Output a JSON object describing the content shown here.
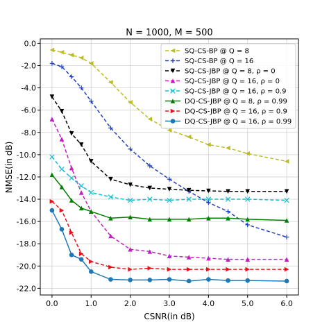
{
  "chart_data": {
    "type": "line",
    "title": "N = 1000, M = 500",
    "xlabel": "CSNR(in dB)",
    "ylabel": "NMSE(in dB)",
    "xlim": [
      -0.3,
      6.3
    ],
    "ylim": [
      -22.6,
      0.4
    ],
    "xticks": [
      0,
      1,
      2,
      3,
      4,
      5,
      6
    ],
    "xtick_labels": [
      "0.0",
      "1.0",
      "2.0",
      "3.0",
      "4.0",
      "5.0",
      "6.0"
    ],
    "yticks": [
      0,
      -2,
      -4,
      -6,
      -8,
      -10,
      -12,
      -14,
      -16,
      -18,
      -20,
      -22
    ],
    "ytick_labels": [
      "0.0",
      "-2.0",
      "-4.0",
      "-6.0",
      "-8.0",
      "-10.0",
      "-12.0",
      "-14.0",
      "-16.0",
      "-18.0",
      "-20.0",
      "-22.0"
    ],
    "grid": true,
    "legend_position": "top-right",
    "series": [
      {
        "name": "SQ-CS-BP @ Q = 8",
        "color": "#bcbd22",
        "linestyle": "dashed",
        "marker": "triangle-left",
        "x": [
          0,
          0.25,
          0.5,
          0.75,
          1,
          1.5,
          2,
          2.5,
          3,
          3.5,
          4,
          4.5,
          5,
          6
        ],
        "y": [
          -0.6,
          -0.8,
          -1.05,
          -1.3,
          -1.8,
          -3.5,
          -5.3,
          -6.8,
          -7.8,
          -8.4,
          -9.1,
          -9.4,
          -9.9,
          -10.6
        ]
      },
      {
        "name": "SQ-CS-BP @ Q = 16",
        "color": "#1f3fbf",
        "linestyle": "dashed",
        "marker": "plus",
        "x": [
          0,
          0.25,
          0.5,
          0.75,
          1,
          1.5,
          2,
          2.5,
          3,
          3.5,
          4,
          4.5,
          5,
          6
        ],
        "y": [
          -1.8,
          -2.1,
          -3.0,
          -4.0,
          -5.2,
          -7.6,
          -9.5,
          -11.0,
          -12.2,
          -13.3,
          -14.3,
          -15.1,
          -16.3,
          -17.4
        ]
      },
      {
        "name": "SQ-CS-JBP @ Q = 8, ρ = 0",
        "color": "#000000",
        "linestyle": "dashed",
        "marker": "triangle-down",
        "x": [
          0,
          0.25,
          0.5,
          0.75,
          1,
          1.5,
          2,
          2.5,
          3,
          3.5,
          4,
          4.5,
          5,
          6
        ],
        "y": [
          -4.8,
          -6.1,
          -8.1,
          -9.1,
          -10.6,
          -12.2,
          -12.7,
          -13.0,
          -13.1,
          -13.2,
          -13.25,
          -13.3,
          -13.3,
          -13.3
        ]
      },
      {
        "name": "SQ-CS-JBP @ Q = 16, ρ = 0",
        "color": "#c020c0",
        "linestyle": "dashed",
        "marker": "triangle-up",
        "x": [
          0,
          0.25,
          0.5,
          0.75,
          1,
          1.5,
          2,
          2.5,
          3,
          3.5,
          4,
          4.5,
          5,
          6
        ],
        "y": [
          -6.8,
          -8.6,
          -11.2,
          -13.4,
          -15.1,
          -17.3,
          -18.5,
          -18.7,
          -19.1,
          -19.2,
          -19.3,
          -19.4,
          -19.4,
          -19.4
        ]
      },
      {
        "name": "SQ-CS-JBP @ Q = 16, ρ = 0.9",
        "color": "#17becf",
        "linestyle": "dashed",
        "marker": "x",
        "x": [
          0,
          0.25,
          0.5,
          0.75,
          1,
          1.5,
          2,
          2.5,
          3,
          3.5,
          4,
          4.5,
          5,
          6
        ],
        "y": [
          -10.2,
          -11.3,
          -12.1,
          -12.8,
          -13.4,
          -13.8,
          -14.1,
          -14.0,
          -14.1,
          -14.0,
          -14.0,
          -14.0,
          -14.0,
          -14.1
        ]
      },
      {
        "name": "DQ-CS-JBP @ Q = 8, ρ = 0.99",
        "color": "#008000",
        "linestyle": "solid",
        "marker": "triangle-up",
        "x": [
          0,
          0.25,
          0.5,
          0.75,
          1,
          1.5,
          2,
          2.5,
          3,
          3.5,
          4,
          4.5,
          5,
          6
        ],
        "y": [
          -11.8,
          -12.9,
          -14.1,
          -14.8,
          -15.1,
          -15.7,
          -15.6,
          -15.8,
          -15.8,
          -15.8,
          -15.7,
          -15.7,
          -15.8,
          -15.9
        ]
      },
      {
        "name": "DQ-CS-JBP @ Q = 16, ρ = 0.9",
        "color": "#e8101a",
        "linestyle": "dashed",
        "marker": "triangle-right",
        "x": [
          0,
          0.25,
          0.5,
          0.75,
          1,
          1.5,
          2,
          2.5,
          3,
          3.5,
          4,
          4.5,
          5,
          6
        ],
        "y": [
          -14.2,
          -15.0,
          -17.0,
          -18.9,
          -19.6,
          -20.1,
          -20.3,
          -20.2,
          -20.3,
          -20.3,
          -20.3,
          -20.3,
          -20.3,
          -20.3
        ]
      },
      {
        "name": "DQ-CS-JBP @ Q = 16, ρ = 0.99",
        "color": "#1f77b4",
        "linestyle": "solid",
        "marker": "circle",
        "x": [
          0,
          0.25,
          0.5,
          0.75,
          1,
          1.5,
          2,
          2.5,
          3,
          3.5,
          4,
          4.5,
          5,
          6
        ],
        "y": [
          -15.0,
          -16.7,
          -19.0,
          -19.4,
          -20.5,
          -21.2,
          -21.25,
          -21.25,
          -21.2,
          -21.35,
          -21.2,
          -21.3,
          -21.3,
          -21.35
        ]
      }
    ]
  }
}
